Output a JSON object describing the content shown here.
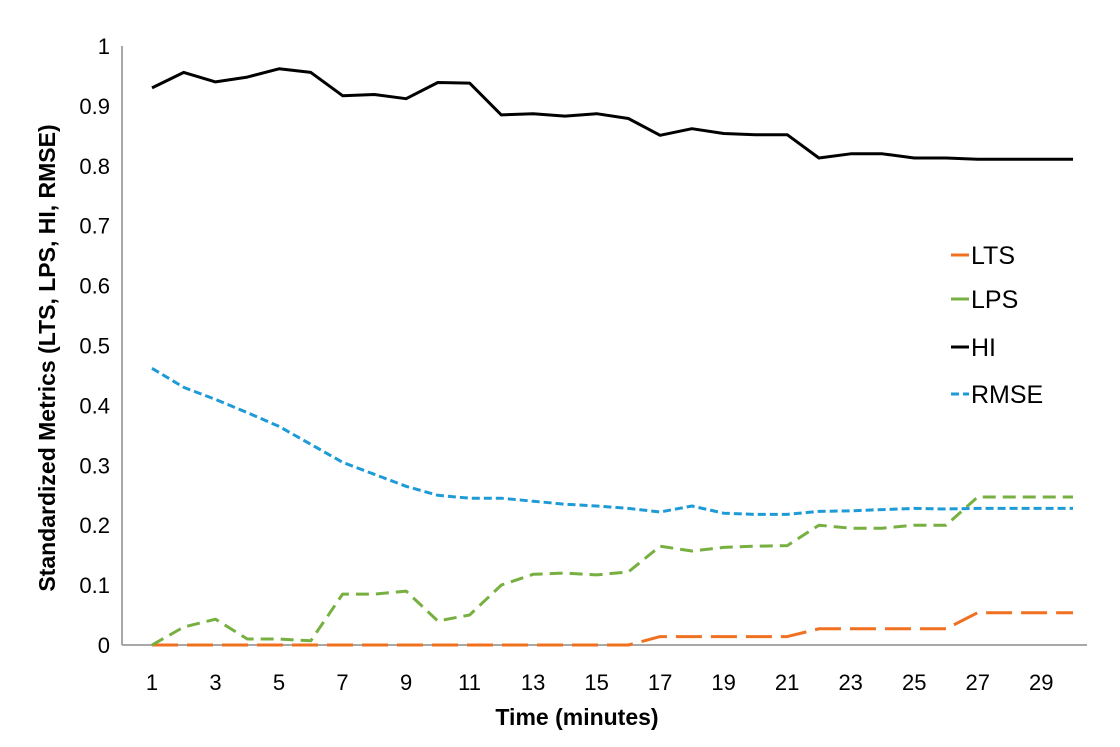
{
  "chart_data": {
    "type": "line",
    "xlabel": "Time (minutes)",
    "ylabel": "Standardized Metrics (LTS, LPS, HI, RMSE)",
    "x": [
      1,
      2,
      3,
      4,
      5,
      6,
      7,
      8,
      9,
      10,
      11,
      12,
      13,
      14,
      15,
      16,
      17,
      18,
      19,
      20,
      21,
      22,
      23,
      24,
      25,
      26,
      27,
      28,
      29,
      30
    ],
    "xlim": [
      1,
      30
    ],
    "ylim": [
      0,
      1
    ],
    "x_tick_labels": [
      "1",
      "3",
      "5",
      "7",
      "9",
      "11",
      "13",
      "15",
      "17",
      "19",
      "21",
      "23",
      "25",
      "27",
      "29"
    ],
    "y_tick_labels": [
      "0",
      "0.1",
      "0.2",
      "0.3",
      "0.4",
      "0.5",
      "0.6",
      "0.7",
      "0.8",
      "0.9",
      "1"
    ],
    "grid": false,
    "legend_position": "right-middle",
    "series": [
      {
        "name": "LTS",
        "color": "#F07020",
        "style": "long-dash",
        "values": [
          0,
          0,
          0,
          0,
          0,
          0,
          0,
          0,
          0,
          0,
          0,
          0,
          0,
          0,
          0,
          0,
          0.014,
          0.014,
          0.014,
          0.014,
          0.014,
          0.027,
          0.027,
          0.027,
          0.027,
          0.027,
          0.054,
          0.054,
          0.054,
          0.054
        ]
      },
      {
        "name": "LPS",
        "color": "#77B041",
        "style": "dash",
        "values": [
          0,
          0.03,
          0.043,
          0.01,
          0.01,
          0.007,
          0.085,
          0.085,
          0.09,
          0.04,
          0.05,
          0.1,
          0.118,
          0.12,
          0.117,
          0.122,
          0.165,
          0.157,
          0.163,
          0.165,
          0.166,
          0.2,
          0.195,
          0.195,
          0.2,
          0.2,
          0.247,
          0.247,
          0.247,
          0.247
        ]
      },
      {
        "name": "HI",
        "color": "#000000",
        "style": "solid",
        "values": [
          0.93,
          0.956,
          0.94,
          0.948,
          0.962,
          0.956,
          0.917,
          0.919,
          0.912,
          0.939,
          0.938,
          0.885,
          0.887,
          0.883,
          0.887,
          0.879,
          0.851,
          0.862,
          0.854,
          0.852,
          0.852,
          0.813,
          0.82,
          0.82,
          0.813,
          0.813,
          0.811,
          0.811,
          0.811,
          0.811
        ]
      },
      {
        "name": "RMSE",
        "color": "#1E9BD7",
        "style": "short-dash",
        "values": [
          0.462,
          0.43,
          0.41,
          0.388,
          0.365,
          0.335,
          0.305,
          0.285,
          0.265,
          0.25,
          0.245,
          0.245,
          0.24,
          0.235,
          0.232,
          0.228,
          0.222,
          0.232,
          0.22,
          0.218,
          0.218,
          0.223,
          0.224,
          0.226,
          0.228,
          0.227,
          0.228,
          0.228,
          0.228,
          0.228
        ]
      }
    ]
  }
}
